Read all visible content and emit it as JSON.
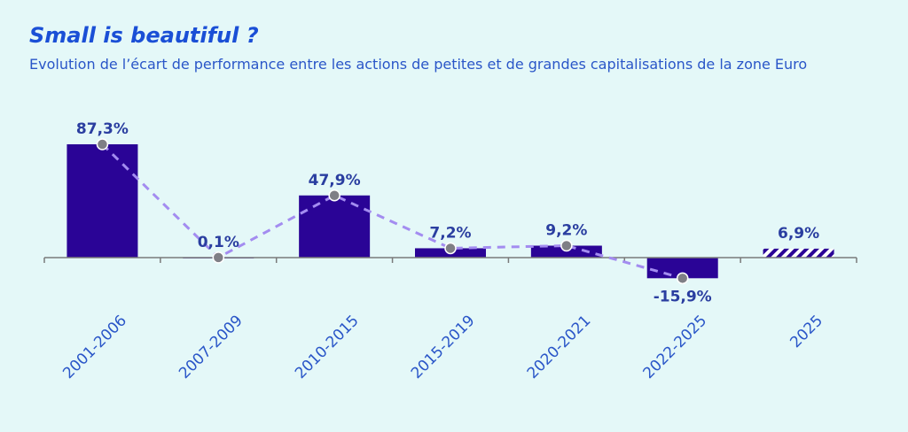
{
  "header": {
    "title": "Small is beautiful ?",
    "subtitle": "Evolution de l’écart de performance entre les actions de petites et de grandes capitalisations de la zone Euro"
  },
  "colors": {
    "bar": "#2a0496",
    "line": "#a38cf0",
    "marker": "#7f7f86",
    "axis": "#7a7a7a",
    "label": "#2a3ea0"
  },
  "chart_data": {
    "type": "bar",
    "categories": [
      "2001-2006",
      "2007-2009",
      "2010-2015",
      "2015-2019",
      "2020-2021",
      "2022-2025",
      "2025"
    ],
    "values": [
      87.3,
      0.1,
      47.9,
      7.2,
      9.2,
      -15.9,
      6.9
    ],
    "value_labels": [
      "87,3%",
      "0,1%",
      "47,9%",
      "7,2%",
      "9,2%",
      "-15,9%",
      "6,9%"
    ],
    "hatched": [
      false,
      false,
      false,
      false,
      false,
      false,
      true
    ],
    "line_overlay": {
      "style": "dashed",
      "values": [
        87.3,
        0.1,
        47.9,
        7.2,
        9.2,
        -15.9
      ]
    },
    "ylim": [
      -20,
      95
    ],
    "xlabel": "",
    "ylabel": "",
    "grid": false,
    "tick_rotation": -45
  }
}
